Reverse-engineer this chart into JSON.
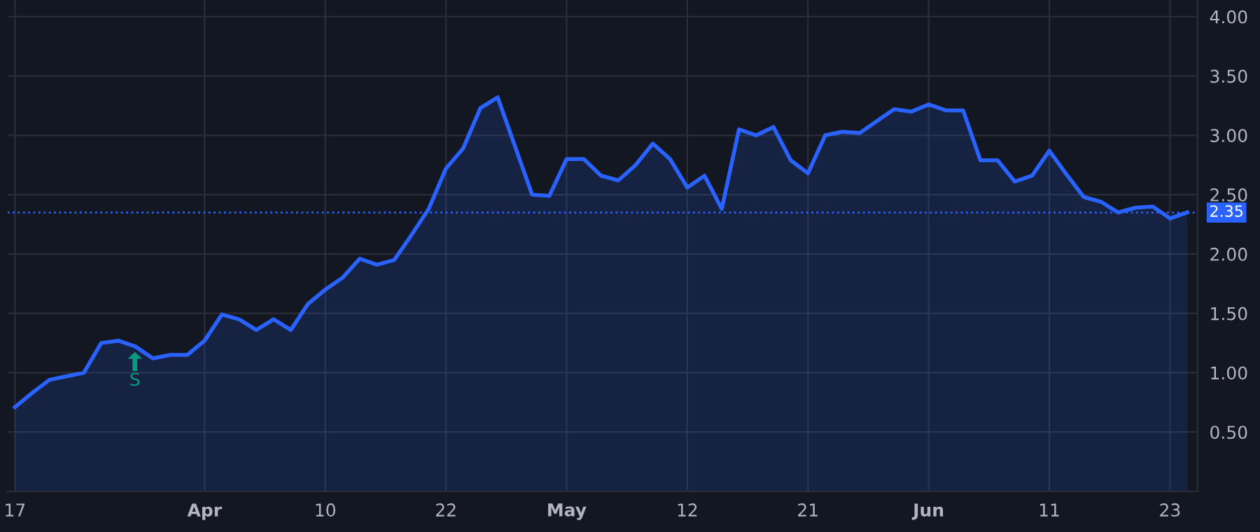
{
  "chart_data": {
    "type": "area",
    "categories": [
      "17",
      null,
      null,
      null,
      null,
      null,
      null,
      null,
      null,
      null,
      null,
      "Apr",
      null,
      null,
      null,
      null,
      null,
      null,
      "10",
      null,
      null,
      null,
      null,
      null,
      null,
      "22",
      null,
      null,
      null,
      null,
      null,
      null,
      "May",
      null,
      null,
      null,
      null,
      null,
      null,
      "12",
      null,
      null,
      null,
      null,
      null,
      null,
      "21",
      null,
      null,
      null,
      null,
      null,
      null,
      "Jun",
      null,
      null,
      null,
      null,
      null,
      null,
      "11",
      null,
      null,
      null,
      null,
      null,
      null,
      "23",
      null
    ],
    "series": [
      {
        "color": "#2962ff",
        "values": [
          0.71,
          0.83,
          0.94,
          0.97,
          1.0,
          1.25,
          1.27,
          1.22,
          1.12,
          1.15,
          1.15,
          1.27,
          1.49,
          1.45,
          1.36,
          1.45,
          1.36,
          1.58,
          1.7,
          1.8,
          1.96,
          1.91,
          1.95,
          2.16,
          2.38,
          2.72,
          2.89,
          3.23,
          3.32,
          2.91,
          2.5,
          2.49,
          2.8,
          2.8,
          2.66,
          2.62,
          2.75,
          2.93,
          2.8,
          2.56,
          2.66,
          2.38,
          3.05,
          3.0,
          3.07,
          2.79,
          2.68,
          3.0,
          3.03,
          3.02,
          3.12,
          3.22,
          3.2,
          3.26,
          3.21,
          3.21,
          2.79,
          2.79,
          2.61,
          2.66,
          2.87,
          2.67,
          2.48,
          2.44,
          2.35,
          2.39,
          2.4,
          2.3,
          2.35
        ]
      }
    ],
    "ylim": [
      0,
      4.14
    ],
    "yticks": [
      {
        "value": 0.5,
        "label": "0.50"
      },
      {
        "value": 1,
        "label": "1.00"
      },
      {
        "value": 1.5,
        "label": "1.50"
      },
      {
        "value": 2,
        "label": "2.00"
      },
      {
        "value": 2.5,
        "label": "2.50"
      },
      {
        "value": 3,
        "label": "3.00"
      },
      {
        "value": 3.5,
        "label": "3.50"
      },
      {
        "value": 4,
        "label": "4.00"
      }
    ],
    "ref_lines": [
      {
        "axis": "y",
        "value": 2.35,
        "label": "2.35",
        "color": "#2962ff",
        "line_style": "dotted"
      }
    ],
    "annotations": [
      "S"
    ],
    "grid": true,
    "marker": "none",
    "line_style": "solid",
    "legend": false
  }
}
